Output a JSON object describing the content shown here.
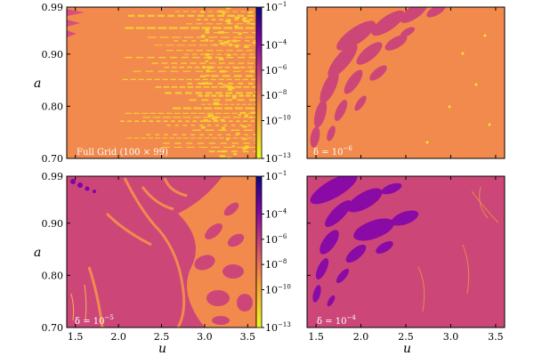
{
  "chart_data": {
    "type": "heatmap",
    "colorbar": {
      "scale": "log",
      "colormap": "plasma",
      "range": [
        1e-13,
        0.1
      ],
      "tick_labels": [
        "10^-1",
        "10^-4",
        "10^-6",
        "10^-8",
        "10^-10",
        "10^-13"
      ]
    },
    "xlabel": "u",
    "ylabel": "a",
    "x_range": [
      1.4,
      3.6
    ],
    "y_range": [
      0.7,
      0.99
    ],
    "x_tick_labels": [
      "1.5",
      "2.0",
      "2.5",
      "3.0",
      "3.5"
    ],
    "x_ticks": [
      1.5,
      2.0,
      2.5,
      3.0,
      3.5
    ],
    "y_tick_labels": [
      "0.99",
      "0.90",
      "0.80",
      "0.70"
    ],
    "y_ticks": [
      0.99,
      0.9,
      0.8,
      0.7
    ],
    "panels": [
      {
        "id": "full",
        "label": "Full Grid (100 × 99)",
        "dominant_level": "1e-9",
        "band_level": "1e-11"
      },
      {
        "id": "d6",
        "label_prefix": "δ = 10",
        "label_exp": "−6",
        "dominant_level": "1e-9",
        "blob_level": "1e-6"
      },
      {
        "id": "d5",
        "label_prefix": "δ = 10",
        "label_exp": "−5",
        "dominant_level": "1e-7",
        "blob_level": "1e-9"
      },
      {
        "id": "d4",
        "label_prefix": "δ = 10",
        "label_exp": "−4",
        "dominant_level": "1e-7",
        "blob_level": "1e-5"
      }
    ]
  }
}
